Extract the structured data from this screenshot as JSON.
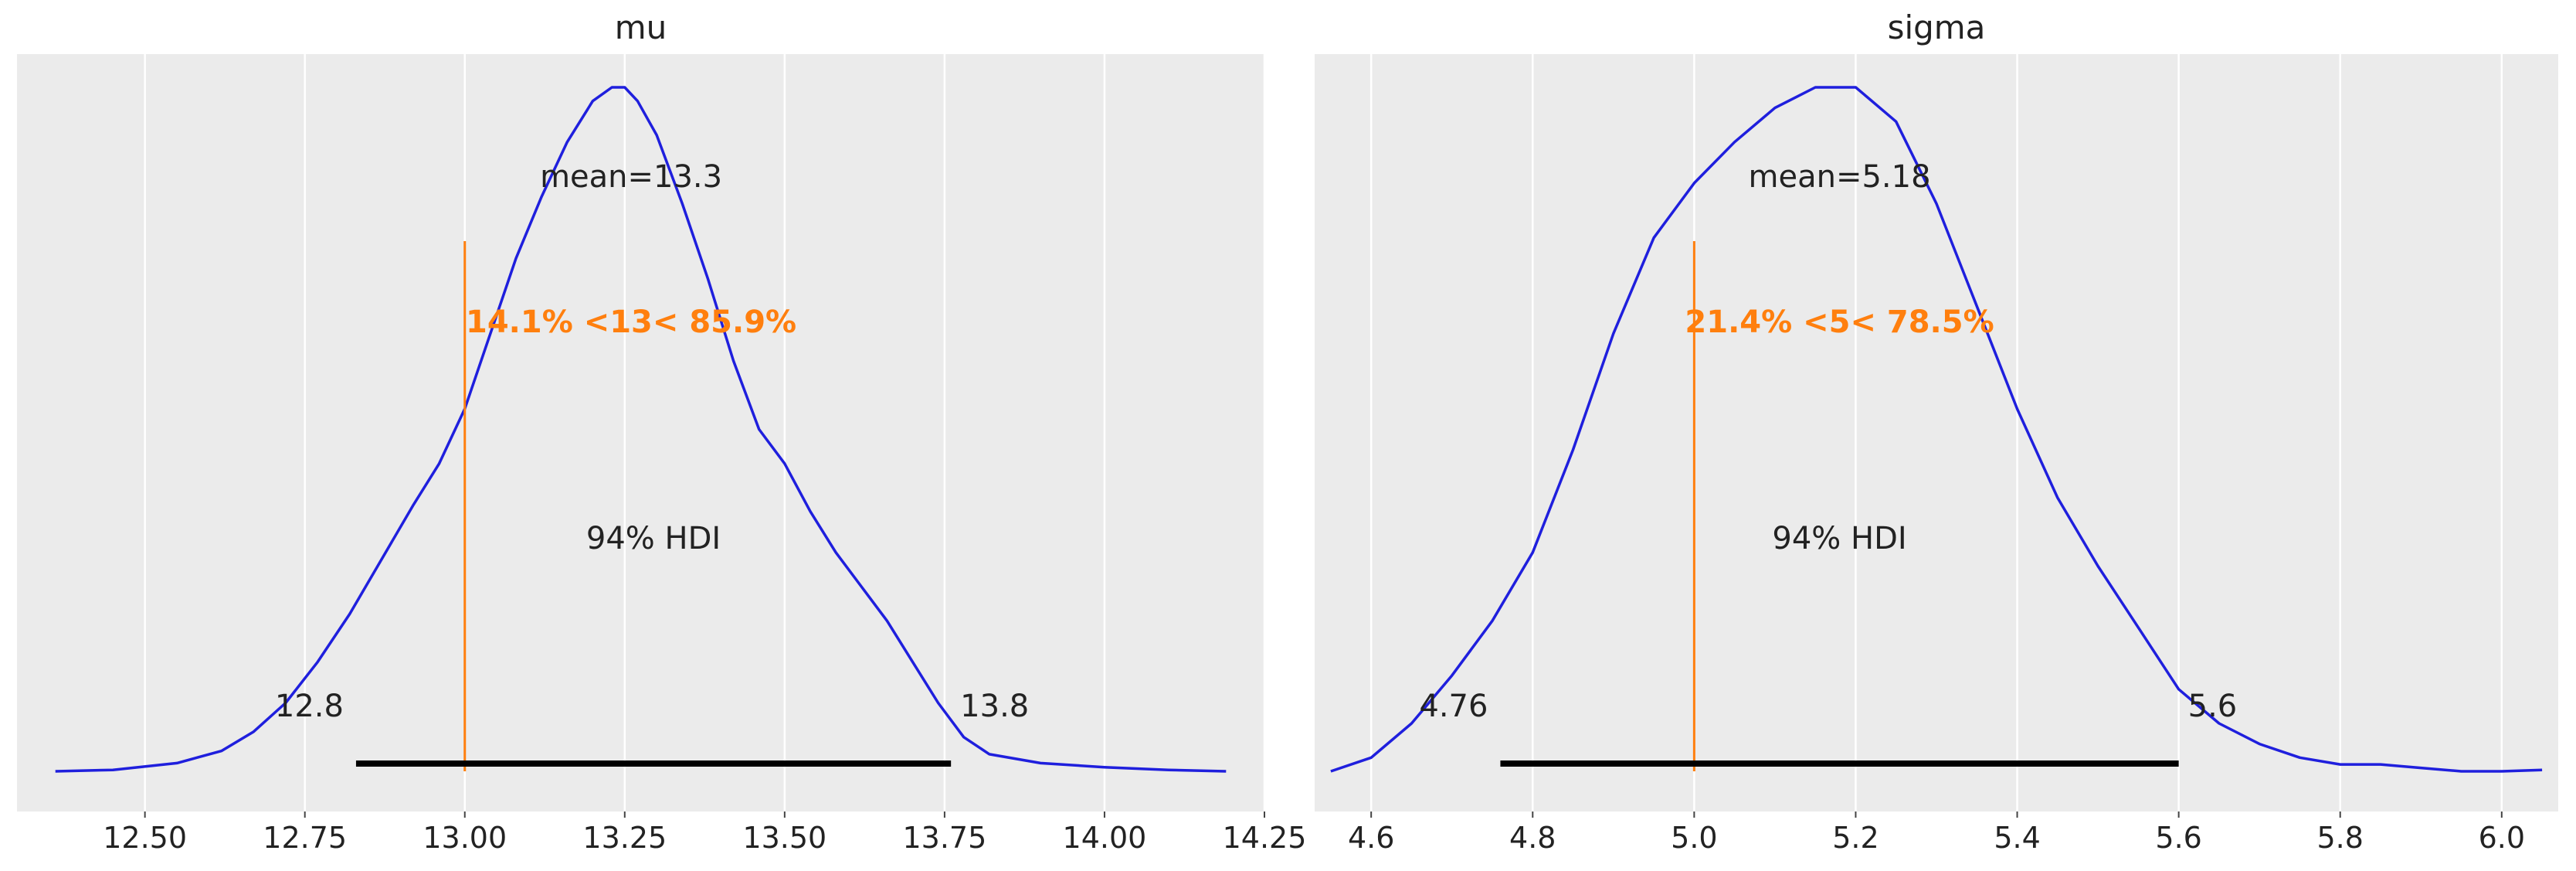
{
  "chart_data": [
    {
      "type": "area",
      "title": "mu",
      "xlabel": "",
      "ylabel": "",
      "xlim": [
        12.3,
        14.25
      ],
      "xticks": [
        {
          "value": 12.5,
          "label": "12.50"
        },
        {
          "value": 12.75,
          "label": "12.75"
        },
        {
          "value": 13.0,
          "label": "13.00"
        },
        {
          "value": 13.25,
          "label": "13.25"
        },
        {
          "value": 13.5,
          "label": "13.50"
        },
        {
          "value": 13.75,
          "label": "13.75"
        },
        {
          "value": 14.0,
          "label": "14.00"
        },
        {
          "value": 14.25,
          "label": "14.25"
        }
      ],
      "grid": true,
      "density": {
        "x": [
          12.36,
          12.45,
          12.55,
          12.62,
          12.67,
          12.72,
          12.77,
          12.82,
          12.87,
          12.92,
          12.96,
          13.0,
          13.04,
          13.08,
          13.12,
          13.16,
          13.2,
          13.23,
          13.25,
          13.27,
          13.3,
          13.34,
          13.38,
          13.42,
          13.46,
          13.5,
          13.54,
          13.58,
          13.62,
          13.66,
          13.7,
          13.74,
          13.78,
          13.82,
          13.9,
          14.0,
          14.1,
          14.19
        ],
        "y": [
          0.0,
          0.002,
          0.012,
          0.03,
          0.058,
          0.1,
          0.16,
          0.23,
          0.31,
          0.39,
          0.45,
          0.53,
          0.64,
          0.75,
          0.84,
          0.92,
          0.98,
          1.0,
          1.0,
          0.98,
          0.93,
          0.83,
          0.72,
          0.6,
          0.5,
          0.45,
          0.38,
          0.32,
          0.27,
          0.22,
          0.16,
          0.1,
          0.05,
          0.025,
          0.012,
          0.006,
          0.002,
          0.0
        ]
      },
      "mean_label": "mean=13.3",
      "mean_anchor": 13.26,
      "reference": {
        "value": 13.0,
        "label": "14.1% <13< 85.9%",
        "color": "#ff7f0e"
      },
      "hdi": {
        "label": "94% HDI",
        "low": 12.83,
        "high": 13.76,
        "low_label": "12.8",
        "high_label": "13.8"
      },
      "line_color": "#1f1fdd"
    },
    {
      "type": "area",
      "title": "sigma",
      "xlabel": "",
      "ylabel": "",
      "xlim": [
        4.53,
        6.07
      ],
      "xticks": [
        {
          "value": 4.6,
          "label": "4.6"
        },
        {
          "value": 4.8,
          "label": "4.8"
        },
        {
          "value": 5.0,
          "label": "5.0"
        },
        {
          "value": 5.2,
          "label": "5.2"
        },
        {
          "value": 5.4,
          "label": "5.4"
        },
        {
          "value": 5.6,
          "label": "5.6"
        },
        {
          "value": 5.8,
          "label": "5.8"
        },
        {
          "value": 6.0,
          "label": "6.0"
        }
      ],
      "grid": true,
      "density": {
        "x": [
          4.55,
          4.6,
          4.65,
          4.7,
          4.75,
          4.8,
          4.85,
          4.9,
          4.95,
          5.0,
          5.05,
          5.1,
          5.15,
          5.2,
          5.25,
          5.3,
          5.35,
          5.4,
          5.45,
          5.5,
          5.55,
          5.6,
          5.65,
          5.7,
          5.75,
          5.8,
          5.85,
          5.9,
          5.95,
          6.0,
          6.05
        ],
        "y": [
          0.0,
          0.02,
          0.07,
          0.14,
          0.22,
          0.32,
          0.47,
          0.64,
          0.78,
          0.86,
          0.92,
          0.97,
          1.0,
          1.0,
          0.95,
          0.83,
          0.68,
          0.53,
          0.4,
          0.3,
          0.21,
          0.12,
          0.07,
          0.04,
          0.02,
          0.01,
          0.01,
          0.005,
          0.0,
          0.0,
          0.002
        ]
      },
      "mean_label": "mean=5.18",
      "mean_anchor": 5.18,
      "reference": {
        "value": 5.0,
        "label": "21.4% <5< 78.5%",
        "color": "#ff7f0e"
      },
      "hdi": {
        "label": "94% HDI",
        "low": 4.76,
        "high": 5.6,
        "low_label": "4.76",
        "high_label": "5.6"
      },
      "line_color": "#1f1fdd"
    }
  ],
  "colors": {
    "plot_background": "#ebebeb",
    "grid": "#ffffff",
    "hdi_bar": "#000000",
    "text": "#222222"
  }
}
